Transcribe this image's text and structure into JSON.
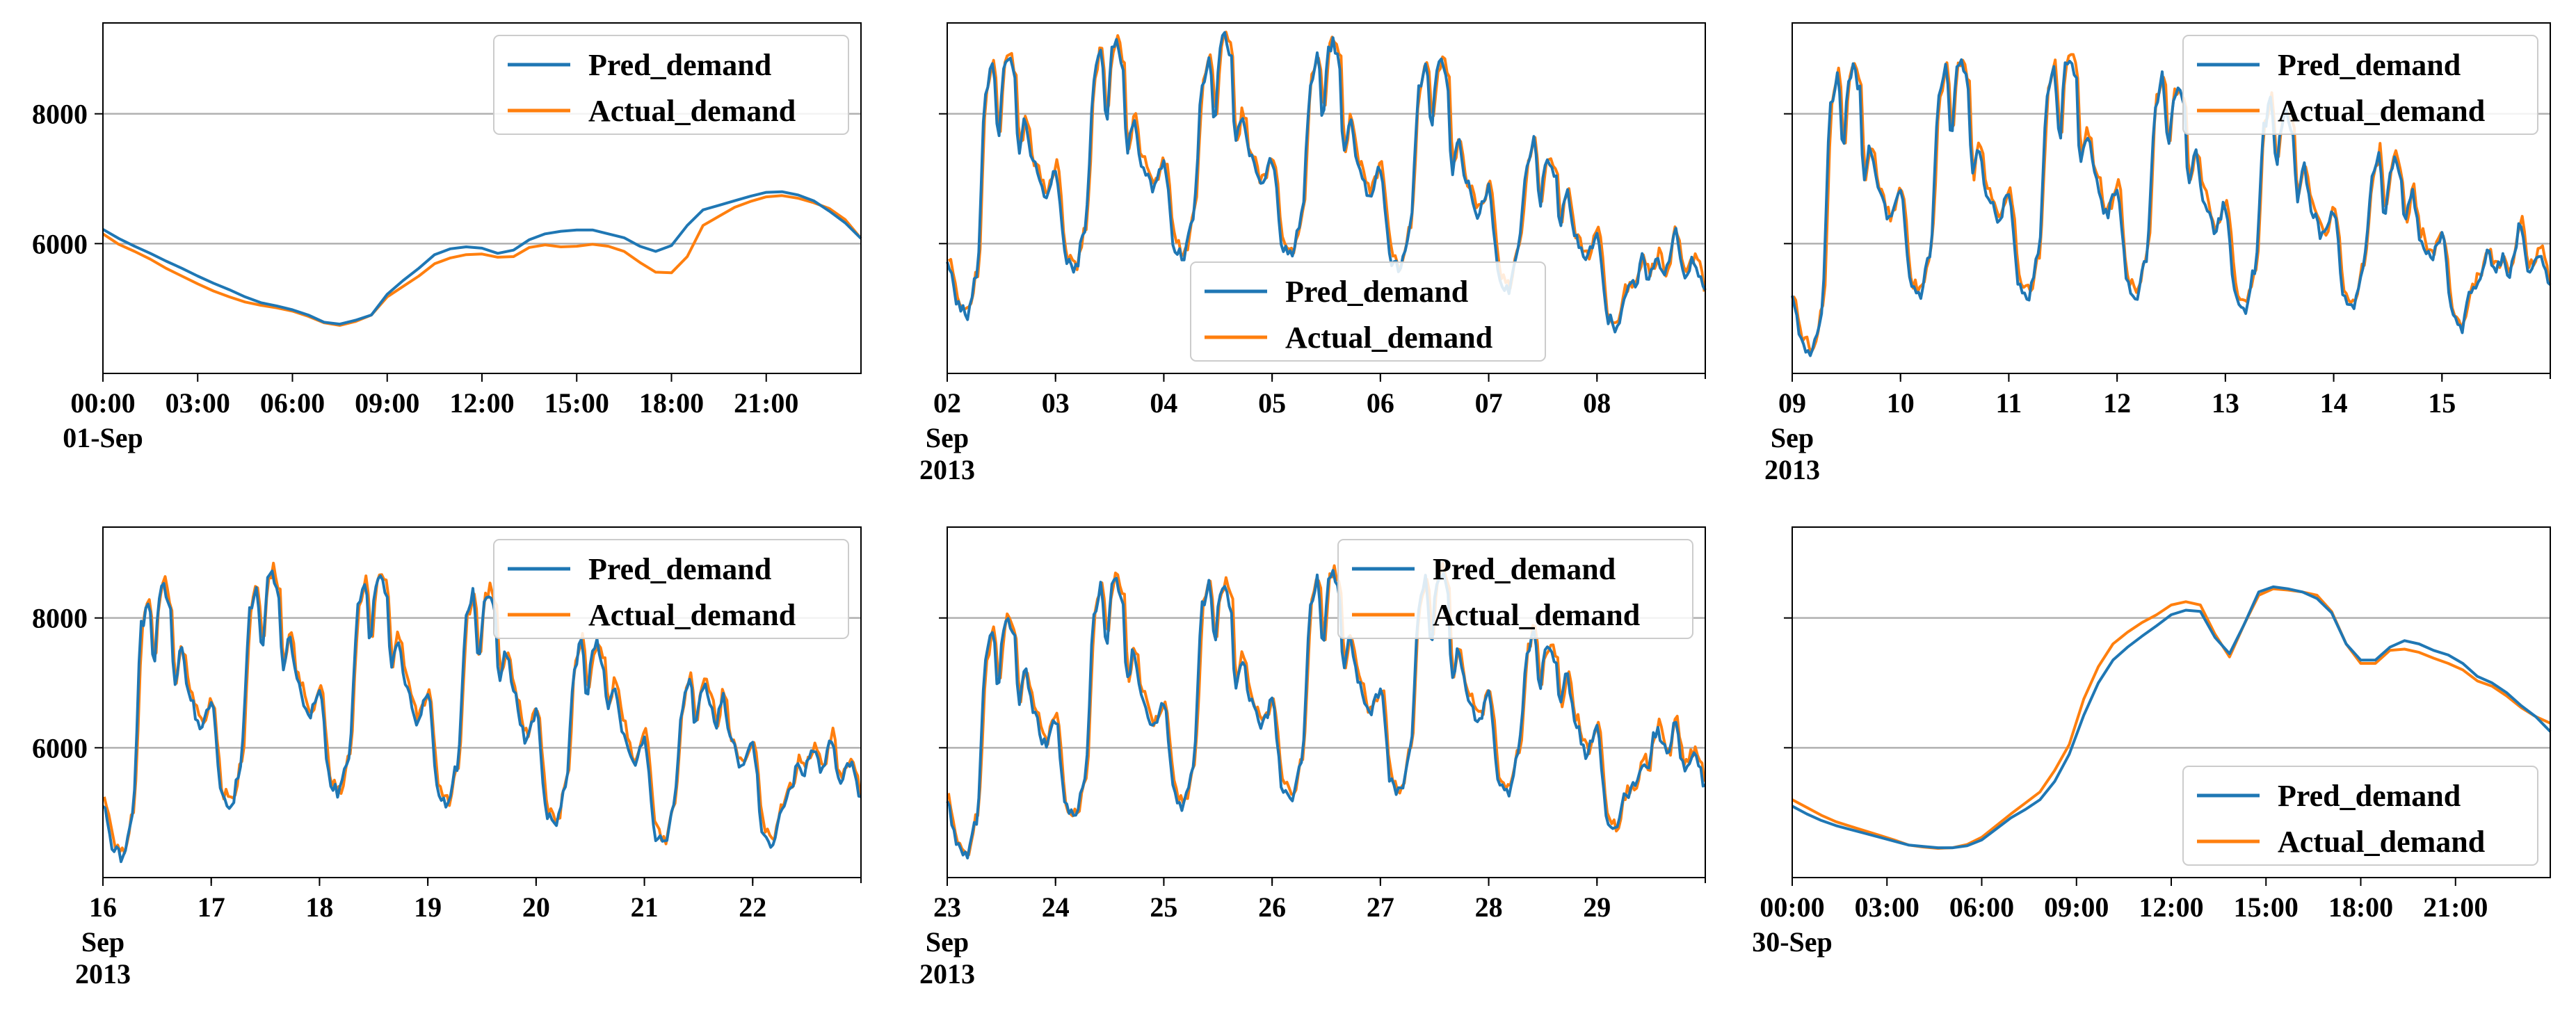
{
  "colors": {
    "pred": "#1f77b4",
    "actual": "#ff7f0e",
    "grid": "#b0b0b0",
    "axis": "#000000"
  },
  "legend_labels": [
    "Pred_demand",
    "Actual_demand"
  ],
  "chart_data": [
    {
      "id": "p1",
      "type": "line",
      "legend_pos": "top-right",
      "y_ticks": [
        "6000",
        "8000"
      ],
      "x_ticks": [
        {
          "x": 0,
          "label": "00:00",
          "sub": "01-Sep"
        },
        {
          "x": 3,
          "label": "03:00",
          "sub": ""
        },
        {
          "x": 6,
          "label": "06:00",
          "sub": ""
        },
        {
          "x": 9,
          "label": "09:00",
          "sub": ""
        },
        {
          "x": 12,
          "label": "12:00",
          "sub": ""
        },
        {
          "x": 15,
          "label": "15:00",
          "sub": ""
        },
        {
          "x": 18,
          "label": "18:00",
          "sub": ""
        },
        {
          "x": 21,
          "label": "21:00",
          "sub": ""
        }
      ],
      "series": [
        {
          "name": "Pred_demand",
          "values": [
            6220,
            6080,
            5960,
            5850,
            5730,
            5620,
            5500,
            5390,
            5290,
            5180,
            5090,
            5040,
            4980,
            4900,
            4790,
            4760,
            4820,
            4900,
            5220,
            5430,
            5620,
            5830,
            5920,
            5950,
            5930,
            5850,
            5900,
            6060,
            6150,
            6190,
            6210,
            6210,
            6150,
            6090,
            5960,
            5880,
            5970,
            6280,
            6520,
            6590,
            6660,
            6730,
            6790,
            6800,
            6750,
            6660,
            6500,
            6320,
            6080
          ]
        },
        {
          "name": "Actual_demand",
          "values": [
            6150,
            5990,
            5880,
            5760,
            5620,
            5500,
            5380,
            5270,
            5180,
            5100,
            5050,
            5010,
            4960,
            4880,
            4780,
            4740,
            4800,
            4900,
            5180,
            5340,
            5500,
            5690,
            5780,
            5830,
            5840,
            5790,
            5800,
            5940,
            5980,
            5950,
            5960,
            5990,
            5960,
            5880,
            5710,
            5560,
            5550,
            5800,
            6280,
            6420,
            6560,
            6650,
            6720,
            6740,
            6700,
            6630,
            6540,
            6370,
            6080
          ]
        }
      ],
      "xlim": [
        0,
        24
      ],
      "ylim": [
        4000,
        9400
      ]
    },
    {
      "id": "p2",
      "type": "line",
      "legend_pos": "bottom-center",
      "y_ticks": [
        "6000",
        "8000"
      ],
      "x_ticks": [
        {
          "x": 0,
          "label": "02",
          "sub": "Sep",
          "sub2": "2013"
        },
        {
          "x": 1,
          "label": "03",
          "sub": ""
        },
        {
          "x": 2,
          "label": "04",
          "sub": ""
        },
        {
          "x": 3,
          "label": "05",
          "sub": ""
        },
        {
          "x": 4,
          "label": "06",
          "sub": ""
        },
        {
          "x": 5,
          "label": "07",
          "sub": ""
        },
        {
          "x": 6,
          "label": "08",
          "sub": ""
        }
      ],
      "days": [
        {
          "night": 4900,
          "peak1": 8800,
          "dip": 7600,
          "peak2": 8900,
          "eve": 7900
        },
        {
          "night": 5600,
          "peak1": 9000,
          "dip": 7900,
          "peak2": 9100,
          "eve": 7900
        },
        {
          "night": 5800,
          "peak1": 8900,
          "dip": 7900,
          "peak2": 9200,
          "eve": 8000
        },
        {
          "night": 5800,
          "peak1": 8900,
          "dip": 7900,
          "peak2": 9100,
          "eve": 7900
        },
        {
          "night": 5600,
          "peak1": 8800,
          "dip": 7800,
          "peak2": 8800,
          "eve": 7600
        },
        {
          "night": 5300,
          "peak1": 7600,
          "dip": 6600,
          "peak2": 7300,
          "eve": 6800
        },
        {
          "night": 4700,
          "peak1": 5800,
          "dip": 5500,
          "peak2": 5800,
          "eve": 6200
        }
      ],
      "xlim": [
        0,
        7
      ],
      "ylim": [
        4000,
        9400
      ]
    },
    {
      "id": "p3",
      "type": "line",
      "legend_pos": "top-right",
      "y_ticks": [
        "6000",
        "8000"
      ],
      "x_ticks": [
        {
          "x": 0,
          "label": "09",
          "sub": "Sep",
          "sub2": "2013"
        },
        {
          "x": 1,
          "label": "10",
          "sub": ""
        },
        {
          "x": 2,
          "label": "11",
          "sub": ""
        },
        {
          "x": 3,
          "label": "12",
          "sub": ""
        },
        {
          "x": 4,
          "label": "13",
          "sub": ""
        },
        {
          "x": 5,
          "label": "14",
          "sub": ""
        },
        {
          "x": 6,
          "label": "15",
          "sub": ""
        }
      ],
      "days": [
        {
          "night": 4300,
          "peak1": 8600,
          "dip": 7400,
          "peak2": 8700,
          "eve": 7500
        },
        {
          "night": 5200,
          "peak1": 8700,
          "dip": 7600,
          "peak2": 8800,
          "eve": 7500
        },
        {
          "night": 5200,
          "peak1": 8700,
          "dip": 7600,
          "peak2": 8900,
          "eve": 7700
        },
        {
          "night": 5200,
          "peak1": 8600,
          "dip": 7500,
          "peak2": 8400,
          "eve": 7400
        },
        {
          "night": 5000,
          "peak1": 8200,
          "dip": 7200,
          "peak2": 8000,
          "eve": 7200
        },
        {
          "night": 5000,
          "peak1": 7400,
          "dip": 6400,
          "peak2": 7300,
          "eve": 6800
        },
        {
          "night": 4700,
          "peak1": 5900,
          "dip": 5600,
          "peak2": 5800,
          "eve": 6300
        }
      ],
      "xlim": [
        0,
        7
      ],
      "ylim": [
        4000,
        9400
      ]
    },
    {
      "id": "p4",
      "type": "line",
      "legend_pos": "top-right",
      "y_ticks": [
        "6000",
        "8000"
      ],
      "x_ticks": [
        {
          "x": 0,
          "label": "16",
          "sub": "Sep",
          "sub2": "2013"
        },
        {
          "x": 1,
          "label": "17",
          "sub": ""
        },
        {
          "x": 2,
          "label": "18",
          "sub": ""
        },
        {
          "x": 3,
          "label": "19",
          "sub": ""
        },
        {
          "x": 4,
          "label": "20",
          "sub": ""
        },
        {
          "x": 5,
          "label": "21",
          "sub": ""
        },
        {
          "x": 6,
          "label": "22",
          "sub": ""
        }
      ],
      "days": [
        {
          "night": 4300,
          "peak1": 8300,
          "dip": 7300,
          "peak2": 8500,
          "eve": 7500
        },
        {
          "night": 5100,
          "peak1": 8500,
          "dip": 7500,
          "peak2": 8700,
          "eve": 7700
        },
        {
          "night": 5300,
          "peak1": 8600,
          "dip": 7600,
          "peak2": 8700,
          "eve": 7700
        },
        {
          "night": 5100,
          "peak1": 8400,
          "dip": 7300,
          "peak2": 8400,
          "eve": 7500
        },
        {
          "night": 4800,
          "peak1": 7700,
          "dip": 6800,
          "peak2": 7600,
          "eve": 7000
        },
        {
          "night": 4500,
          "peak1": 7100,
          "dip": 6300,
          "peak2": 7000,
          "eve": 6800
        },
        {
          "night": 4500,
          "peak1": 5800,
          "dip": 5600,
          "peak2": 6000,
          "eve": 6200
        }
      ],
      "xlim": [
        0,
        7
      ],
      "ylim": [
        4000,
        9400
      ]
    },
    {
      "id": "p5",
      "type": "line",
      "legend_pos": "top-right",
      "y_ticks": [
        "6000",
        "8000"
      ],
      "x_ticks": [
        {
          "x": 0,
          "label": "23",
          "sub": "Sep",
          "sub2": "2013"
        },
        {
          "x": 1,
          "label": "24",
          "sub": ""
        },
        {
          "x": 2,
          "label": "25",
          "sub": ""
        },
        {
          "x": 3,
          "label": "26",
          "sub": ""
        },
        {
          "x": 4,
          "label": "27",
          "sub": ""
        },
        {
          "x": 5,
          "label": "28",
          "sub": ""
        },
        {
          "x": 6,
          "label": "29",
          "sub": ""
        }
      ],
      "days": [
        {
          "night": 4300,
          "peak1": 7800,
          "dip": 6900,
          "peak2": 8000,
          "eve": 7200
        },
        {
          "night": 4900,
          "peak1": 8500,
          "dip": 7600,
          "peak2": 8600,
          "eve": 7500
        },
        {
          "night": 5100,
          "peak1": 8600,
          "dip": 7600,
          "peak2": 8500,
          "eve": 7400
        },
        {
          "night": 5200,
          "peak1": 8600,
          "dip": 7600,
          "peak2": 8700,
          "eve": 7700
        },
        {
          "night": 5300,
          "peak1": 8600,
          "dip": 7600,
          "peak2": 8700,
          "eve": 7500
        },
        {
          "night": 5300,
          "peak1": 7900,
          "dip": 6900,
          "peak2": 7600,
          "eve": 7100
        },
        {
          "night": 4700,
          "peak1": 5800,
          "dip": 5600,
          "peak2": 6300,
          "eve": 6400
        }
      ],
      "xlim": [
        0,
        7
      ],
      "ylim": [
        4000,
        9400
      ]
    },
    {
      "id": "p6",
      "type": "line",
      "legend_pos": "bottom-right",
      "y_ticks": [
        "6000",
        "8000"
      ],
      "x_ticks": [
        {
          "x": 0,
          "label": "00:00",
          "sub": "30-Sep"
        },
        {
          "x": 3,
          "label": "03:00",
          "sub": ""
        },
        {
          "x": 6,
          "label": "06:00",
          "sub": ""
        },
        {
          "x": 9,
          "label": "09:00",
          "sub": ""
        },
        {
          "x": 12,
          "label": "12:00",
          "sub": ""
        },
        {
          "x": 15,
          "label": "15:00",
          "sub": ""
        },
        {
          "x": 18,
          "label": "18:00",
          "sub": ""
        },
        {
          "x": 21,
          "label": "21:00",
          "sub": ""
        }
      ],
      "series": [
        {
          "name": "Pred_demand",
          "values": [
            5100,
            4980,
            4880,
            4800,
            4740,
            4680,
            4620,
            4560,
            4500,
            4480,
            4460,
            4460,
            4490,
            4580,
            4750,
            4920,
            5050,
            5200,
            5480,
            5900,
            6500,
            7000,
            7350,
            7550,
            7720,
            7880,
            8050,
            8120,
            8100,
            7700,
            7450,
            7900,
            8400,
            8480,
            8450,
            8400,
            8300,
            8080,
            7600,
            7350,
            7350,
            7550,
            7650,
            7600,
            7500,
            7430,
            7300,
            7100,
            7000,
            6850,
            6650,
            6480,
            6250
          ]
        },
        {
          "name": "Actual_demand",
          "values": [
            5200,
            5080,
            4960,
            4860,
            4790,
            4720,
            4650,
            4580,
            4500,
            4470,
            4450,
            4460,
            4510,
            4620,
            4800,
            4980,
            5150,
            5320,
            5650,
            6050,
            6750,
            7250,
            7600,
            7780,
            7930,
            8050,
            8200,
            8250,
            8200,
            7750,
            7400,
            7900,
            8350,
            8450,
            8430,
            8400,
            8350,
            8100,
            7600,
            7300,
            7300,
            7500,
            7520,
            7470,
            7380,
            7300,
            7200,
            7030,
            6950,
            6800,
            6620,
            6480,
            6380
          ]
        }
      ],
      "xlim": [
        0,
        24
      ],
      "ylim": [
        4000,
        9400
      ]
    }
  ]
}
